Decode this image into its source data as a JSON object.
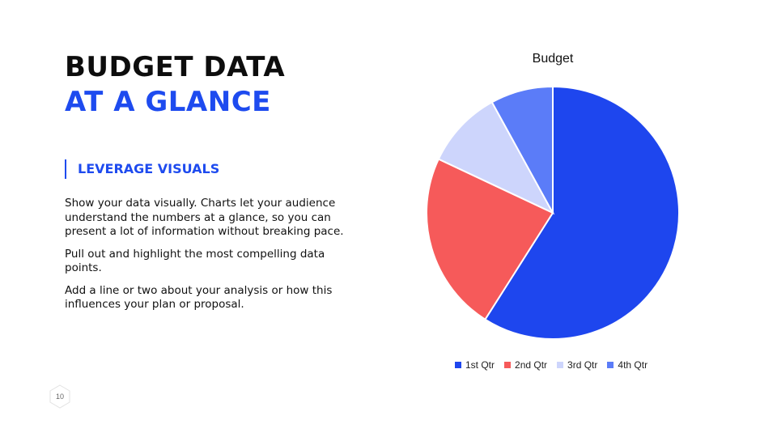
{
  "slide": {
    "title_line1": "BUDGET DATA",
    "title_line2": "AT A GLANCE",
    "subheading": "LEVERAGE VISUALS",
    "paragraphs": [
      "Show your data visually. Charts let your audience understand the numbers at a glance, so you can present a lot of information without breaking pace.",
      "Pull out and highlight the most compelling data points.",
      "Add a line or two about your analysis or how this influences your plan or proposal."
    ],
    "page_number": "10",
    "colors": {
      "accent": "#1e4bef",
      "title": "#0d0d0d"
    }
  },
  "chart_data": {
    "type": "pie",
    "title": "Budget",
    "categories": [
      "1st Qtr",
      "2nd Qtr",
      "3rd Qtr",
      "4th Qtr"
    ],
    "values": [
      59,
      23,
      10,
      8
    ],
    "colors": [
      "#1e46ee",
      "#f65a5a",
      "#cdd5fc",
      "#5b7cf8"
    ],
    "legend": "bottom"
  }
}
